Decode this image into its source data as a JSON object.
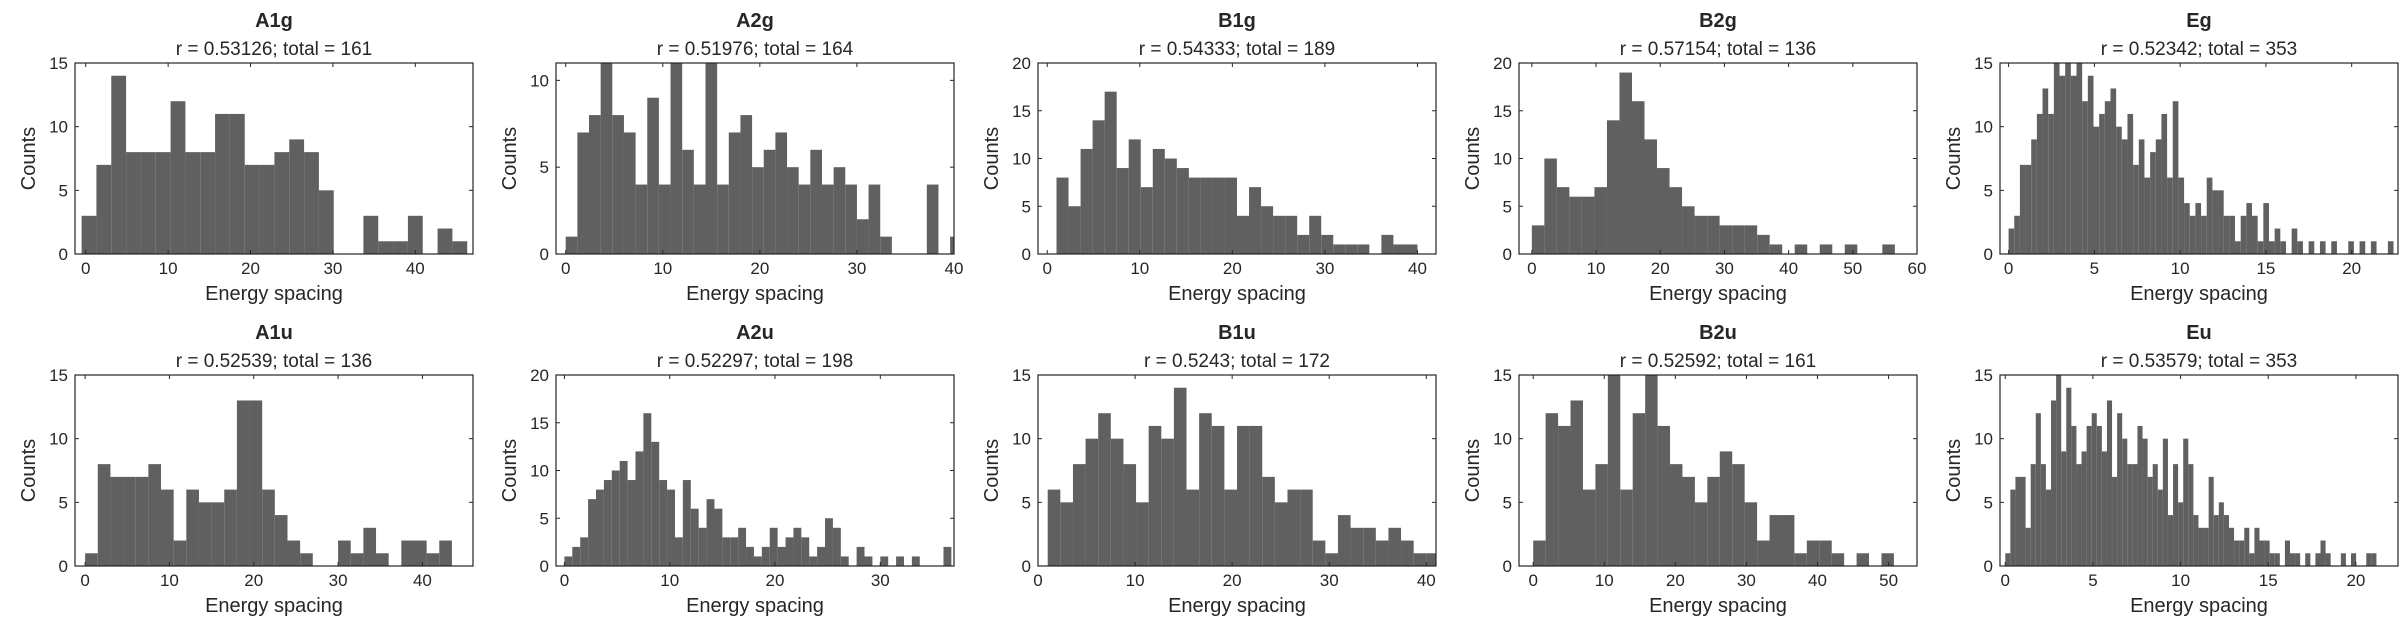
{
  "figure": {
    "bar_color": "#606060",
    "axes_color": "#262626",
    "background": "#ffffff"
  },
  "chart_data": [
    {
      "type": "bar",
      "title": "A1g",
      "subtitle": "r = 0.53126; total = 161",
      "xlabel": "Energy spacing",
      "ylabel": "Counts",
      "xlim": [
        -1.3,
        47
      ],
      "ylim": [
        0,
        15
      ],
      "xticks": [
        0,
        10,
        20,
        30,
        40
      ],
      "yticks": [
        0,
        5,
        10,
        15
      ],
      "bin_start": -0.5,
      "bin_width": 1.8,
      "values": [
        3,
        7,
        14,
        8,
        8,
        8,
        12,
        8,
        8,
        11,
        11,
        7,
        7,
        8,
        9,
        8,
        5,
        0,
        0,
        3,
        1,
        1,
        3,
        0,
        2,
        1,
        0,
        2,
        0,
        0,
        1
      ]
    },
    {
      "type": "bar",
      "title": "A2g",
      "subtitle": "r = 0.51976; total = 164",
      "xlabel": "Energy spacing",
      "ylabel": "Counts",
      "xlim": [
        -1,
        40
      ],
      "ylim": [
        0,
        11
      ],
      "xticks": [
        0,
        10,
        20,
        30,
        40
      ],
      "yticks": [
        0,
        5,
        10
      ],
      "bin_start": 0.0,
      "bin_width": 1.2,
      "values": [
        1,
        7,
        8,
        11,
        8,
        7,
        4,
        9,
        4,
        11,
        6,
        4,
        11,
        4,
        7,
        8,
        5,
        6,
        7,
        5,
        4,
        6,
        4,
        5,
        4,
        2,
        4,
        1,
        0,
        0,
        0,
        4,
        0,
        1,
        2,
        2
      ]
    },
    {
      "type": "bar",
      "title": "B1g",
      "subtitle": "r = 0.54333; total = 189",
      "xlabel": "Energy spacing",
      "ylabel": "Counts",
      "xlim": [
        -1,
        42
      ],
      "ylim": [
        0,
        20
      ],
      "xticks": [
        0,
        10,
        20,
        30,
        40
      ],
      "yticks": [
        0,
        5,
        10,
        15,
        20
      ],
      "bin_start": 1.0,
      "bin_width": 1.3,
      "values": [
        8,
        5,
        11,
        14,
        17,
        9,
        12,
        7,
        11,
        10,
        9,
        8,
        8,
        8,
        8,
        4,
        7,
        5,
        4,
        4,
        2,
        4,
        2,
        1,
        1,
        1,
        0,
        2,
        1,
        1,
        0,
        0,
        1
      ]
    },
    {
      "type": "bar",
      "title": "B2g",
      "subtitle": "r = 0.57154; total = 136",
      "xlabel": "Energy spacing",
      "ylabel": "Counts",
      "xlim": [
        -2,
        60
      ],
      "ylim": [
        0,
        20
      ],
      "xticks": [
        0,
        10,
        20,
        30,
        40,
        50,
        60
      ],
      "yticks": [
        0,
        5,
        10,
        15,
        20
      ],
      "bin_start": 0.0,
      "bin_width": 1.95,
      "values": [
        3,
        10,
        7,
        6,
        6,
        7,
        14,
        19,
        16,
        12,
        9,
        7,
        5,
        4,
        4,
        3,
        3,
        3,
        2,
        1,
        0,
        1,
        0,
        1,
        0,
        1,
        0,
        0,
        1
      ]
    },
    {
      "type": "bar",
      "title": "Eg",
      "subtitle": "r = 0.52342; total = 353",
      "xlabel": "Energy spacing",
      "ylabel": "Counts",
      "xlim": [
        -0.5,
        22.7
      ],
      "ylim": [
        0,
        15
      ],
      "xticks": [
        0,
        5,
        10,
        15,
        20
      ],
      "yticks": [
        0,
        5,
        10,
        15
      ],
      "bin_start": 0.0,
      "bin_width": 0.33,
      "values": [
        2,
        3,
        7,
        7,
        9,
        11,
        13,
        11,
        15,
        14,
        15,
        14,
        15,
        12,
        14,
        10,
        11,
        12,
        13,
        10,
        9,
        11,
        7,
        9,
        6,
        8,
        9,
        11,
        6,
        12,
        6,
        4,
        3,
        4,
        3,
        6,
        5,
        5,
        3,
        3,
        1,
        3,
        4,
        3,
        1,
        4,
        1,
        2,
        1,
        0,
        2,
        1,
        0,
        1,
        0,
        1,
        0,
        1,
        0,
        0,
        1,
        0,
        1,
        0,
        1,
        0,
        0,
        1
      ]
    },
    {
      "type": "bar",
      "title": "A1u",
      "subtitle": "r = 0.52539; total = 136",
      "xlabel": "Energy spacing",
      "ylabel": "Counts",
      "xlim": [
        -1.2,
        46
      ],
      "ylim": [
        0,
        15
      ],
      "xticks": [
        0,
        10,
        20,
        30,
        40
      ],
      "yticks": [
        0,
        5,
        10,
        15
      ],
      "bin_start": 0.0,
      "bin_width": 1.5,
      "values": [
        1,
        8,
        7,
        7,
        7,
        8,
        6,
        2,
        6,
        5,
        5,
        6,
        13,
        13,
        6,
        4,
        2,
        1,
        0,
        0,
        2,
        1,
        3,
        1,
        0,
        2,
        2,
        1,
        2
      ]
    },
    {
      "type": "bar",
      "title": "A2u",
      "subtitle": "r = 0.52297; total = 198",
      "xlabel": "Energy spacing",
      "ylabel": "Counts",
      "xlim": [
        -0.8,
        37
      ],
      "ylim": [
        0,
        20
      ],
      "xticks": [
        0,
        10,
        20,
        30
      ],
      "yticks": [
        0,
        5,
        10,
        15,
        20
      ],
      "bin_start": 0.0,
      "bin_width": 0.75,
      "values": [
        1,
        2,
        3,
        7,
        8,
        9,
        10,
        11,
        9,
        12,
        16,
        13,
        9,
        8,
        3,
        9,
        6,
        4,
        7,
        6,
        3,
        3,
        4,
        2,
        1,
        2,
        4,
        2,
        3,
        4,
        3,
        1,
        2,
        5,
        4,
        1,
        0,
        2,
        1,
        0,
        1,
        0,
        1,
        0,
        1,
        0,
        0,
        0,
        2
      ]
    },
    {
      "type": "bar",
      "title": "B1u",
      "subtitle": "r = 0.5243; total = 172",
      "xlabel": "Energy spacing",
      "ylabel": "Counts",
      "xlim": [
        0,
        41
      ],
      "ylim": [
        0,
        15
      ],
      "xticks": [
        0,
        10,
        20,
        30,
        40
      ],
      "yticks": [
        0,
        5,
        10,
        15
      ],
      "bin_start": 1.0,
      "bin_width": 1.3,
      "values": [
        6,
        5,
        8,
        10,
        12,
        10,
        8,
        5,
        11,
        10,
        14,
        6,
        12,
        11,
        6,
        11,
        11,
        7,
        5,
        6,
        6,
        2,
        1,
        4,
        3,
        3,
        2,
        3,
        2,
        1,
        1,
        1,
        0,
        0,
        1
      ]
    },
    {
      "type": "bar",
      "title": "B2u",
      "subtitle": "r = 0.52592; total = 161",
      "xlabel": "Energy spacing",
      "ylabel": "Counts",
      "xlim": [
        -2,
        54
      ],
      "ylim": [
        0,
        15
      ],
      "xticks": [
        0,
        10,
        20,
        30,
        40,
        50
      ],
      "yticks": [
        0,
        5,
        10,
        15
      ],
      "bin_start": 0.0,
      "bin_width": 1.75,
      "values": [
        2,
        12,
        11,
        13,
        6,
        8,
        15,
        6,
        12,
        15,
        11,
        8,
        7,
        5,
        7,
        9,
        8,
        5,
        2,
        4,
        4,
        1,
        2,
        2,
        1,
        0,
        1,
        0,
        1,
        0,
        0,
        0,
        0,
        0,
        0,
        0,
        0,
        0,
        0,
        0,
        1
      ]
    },
    {
      "type": "bar",
      "title": "Eu",
      "subtitle": "r = 0.53579; total = 353",
      "xlabel": "Energy spacing",
      "ylabel": "Counts",
      "xlim": [
        -0.3,
        22.4
      ],
      "ylim": [
        0,
        15
      ],
      "xticks": [
        0,
        5,
        10,
        15,
        20
      ],
      "yticks": [
        0,
        5,
        10,
        15
      ],
      "bin_start": 0.0,
      "bin_width": 0.29,
      "values": [
        1,
        6,
        7,
        7,
        3,
        8,
        12,
        8,
        6,
        13,
        15,
        9,
        14,
        11,
        8,
        9,
        11,
        12,
        11,
        9,
        13,
        7,
        12,
        10,
        8,
        8,
        11,
        10,
        7,
        8,
        6,
        10,
        4,
        8,
        5,
        10,
        8,
        4,
        3,
        3,
        7,
        4,
        5,
        4,
        3,
        2,
        2,
        3,
        1,
        3,
        2,
        2,
        1,
        1,
        0,
        2,
        1,
        1,
        0,
        1,
        0,
        1,
        2,
        1,
        0,
        0,
        1,
        0,
        1,
        0,
        0,
        1,
        1
      ]
    }
  ]
}
